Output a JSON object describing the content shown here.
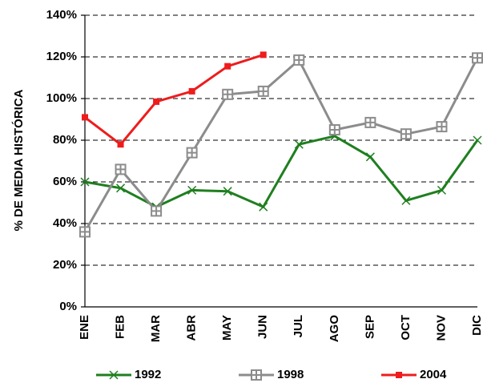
{
  "chart_data": {
    "type": "line",
    "y_label": "% DE MEDIA HISTÓRICA",
    "categories": [
      "ENE",
      "FEB",
      "MAR",
      "ABR",
      "MAY",
      "JUN",
      "JUL",
      "AGO",
      "SEP",
      "OCT",
      "NOV",
      "DIC"
    ],
    "series": [
      {
        "name": "1992",
        "color": "#1f7f1f",
        "marker": "x",
        "values": [
          60,
          57,
          48,
          56,
          55.5,
          48,
          78,
          82,
          72,
          51,
          56,
          80
        ]
      },
      {
        "name": "1998",
        "color": "#8c8c8c",
        "marker": "square-plus",
        "values": [
          36,
          66,
          46,
          74,
          102,
          103.5,
          118.5,
          85,
          88.5,
          83,
          86.5,
          119.5
        ]
      },
      {
        "name": "2004",
        "color": "#ee1c1c",
        "marker": "square",
        "values": [
          91,
          78,
          98.5,
          103.5,
          115.5,
          121,
          null,
          null,
          null,
          null,
          null,
          null
        ]
      }
    ],
    "ylim": [
      0,
      140
    ],
    "yticks": [
      {
        "value": 0,
        "label": "0%"
      },
      {
        "value": 20,
        "label": "20%"
      },
      {
        "value": 40,
        "label": "40%"
      },
      {
        "value": 60,
        "label": "60%"
      },
      {
        "value": 80,
        "label": "80%"
      },
      {
        "value": 100,
        "label": "100%"
      },
      {
        "value": 120,
        "label": "120%"
      },
      {
        "value": 140,
        "label": "140%"
      }
    ],
    "grid": true,
    "legend": "bottom"
  }
}
